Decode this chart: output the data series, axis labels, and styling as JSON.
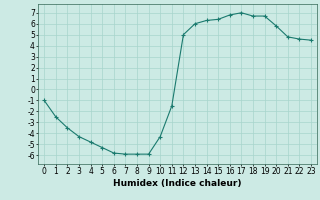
{
  "xlabel": "Humidex (Indice chaleur)",
  "x": [
    0,
    1,
    2,
    3,
    4,
    5,
    6,
    7,
    8,
    9,
    10,
    11,
    12,
    13,
    14,
    15,
    16,
    17,
    18,
    19,
    20,
    21,
    22,
    23
  ],
  "y": [
    -1.0,
    -2.5,
    -3.5,
    -4.3,
    -4.8,
    -5.3,
    -5.8,
    -5.9,
    -5.9,
    -5.9,
    -4.3,
    -1.5,
    5.0,
    6.0,
    6.3,
    6.4,
    6.8,
    7.0,
    6.7,
    6.7,
    5.8,
    4.8,
    4.6,
    4.5
  ],
  "x_ticks": [
    0,
    1,
    2,
    3,
    4,
    5,
    6,
    7,
    8,
    9,
    10,
    11,
    12,
    13,
    14,
    15,
    16,
    17,
    18,
    19,
    20,
    21,
    22,
    23
  ],
  "x_tick_labels": [
    "0",
    "1",
    "2",
    "3",
    "4",
    "5",
    "6",
    "7",
    "8",
    "9",
    "10",
    "11",
    "12",
    "13",
    "14",
    "15",
    "16",
    "17",
    "18",
    "19",
    "20",
    "21",
    "22",
    "23"
  ],
  "y_ticks": [
    -6,
    -5,
    -4,
    -3,
    -2,
    -1,
    0,
    1,
    2,
    3,
    4,
    5,
    6,
    7
  ],
  "ylim": [
    -6.8,
    7.8
  ],
  "xlim": [
    -0.5,
    23.5
  ],
  "line_color": "#1a7a6e",
  "marker": "+",
  "bg_color": "#cceae4",
  "grid_color": "#a8d5cc",
  "label_fontsize": 6.5,
  "tick_fontsize": 5.5
}
